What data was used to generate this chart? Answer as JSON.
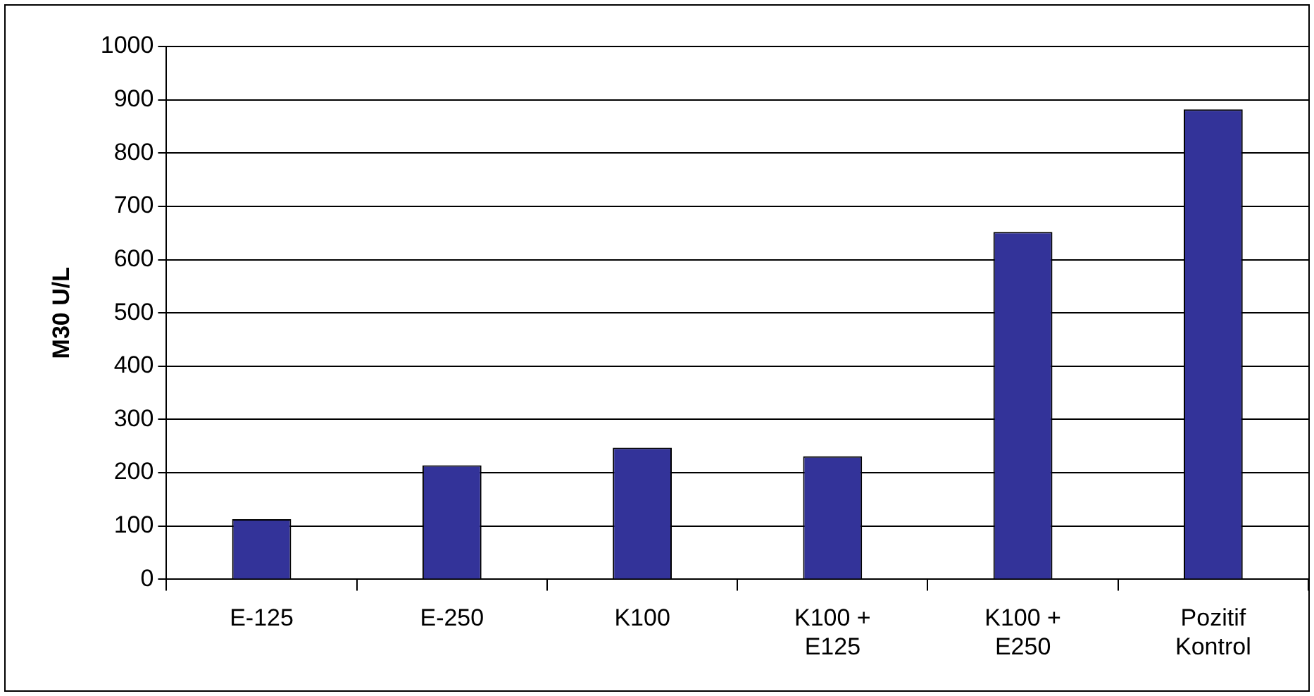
{
  "chart_data": {
    "type": "bar",
    "ylabel": "M30 U/L",
    "categories": [
      "E-125",
      "E-250",
      "K100",
      "K100 +\nE125",
      "K100 +\nE250",
      "Pozitif\nKontrol"
    ],
    "values": [
      113,
      214,
      247,
      231,
      652,
      882
    ],
    "color": "#333399",
    "ylim": [
      0,
      1000
    ],
    "yticks": [
      0,
      100,
      200,
      300,
      400,
      500,
      600,
      700,
      800,
      900,
      1000
    ],
    "grid": "y",
    "legend": false
  }
}
